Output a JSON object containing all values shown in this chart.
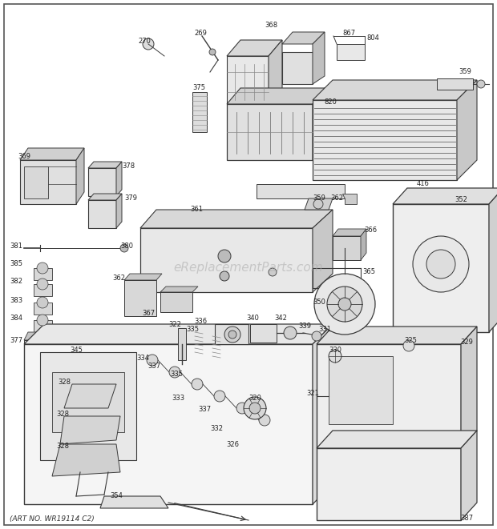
{
  "bg_color": "#ffffff",
  "border_color": "#333333",
  "art_no": "(ART NO. WR19114 C2)",
  "watermark": "eReplacementParts.com",
  "line_color": "#3a3a3a",
  "label_color": "#222222",
  "label_fs": 6.0,
  "fig_w": 6.2,
  "fig_h": 6.61,
  "dpi": 100
}
